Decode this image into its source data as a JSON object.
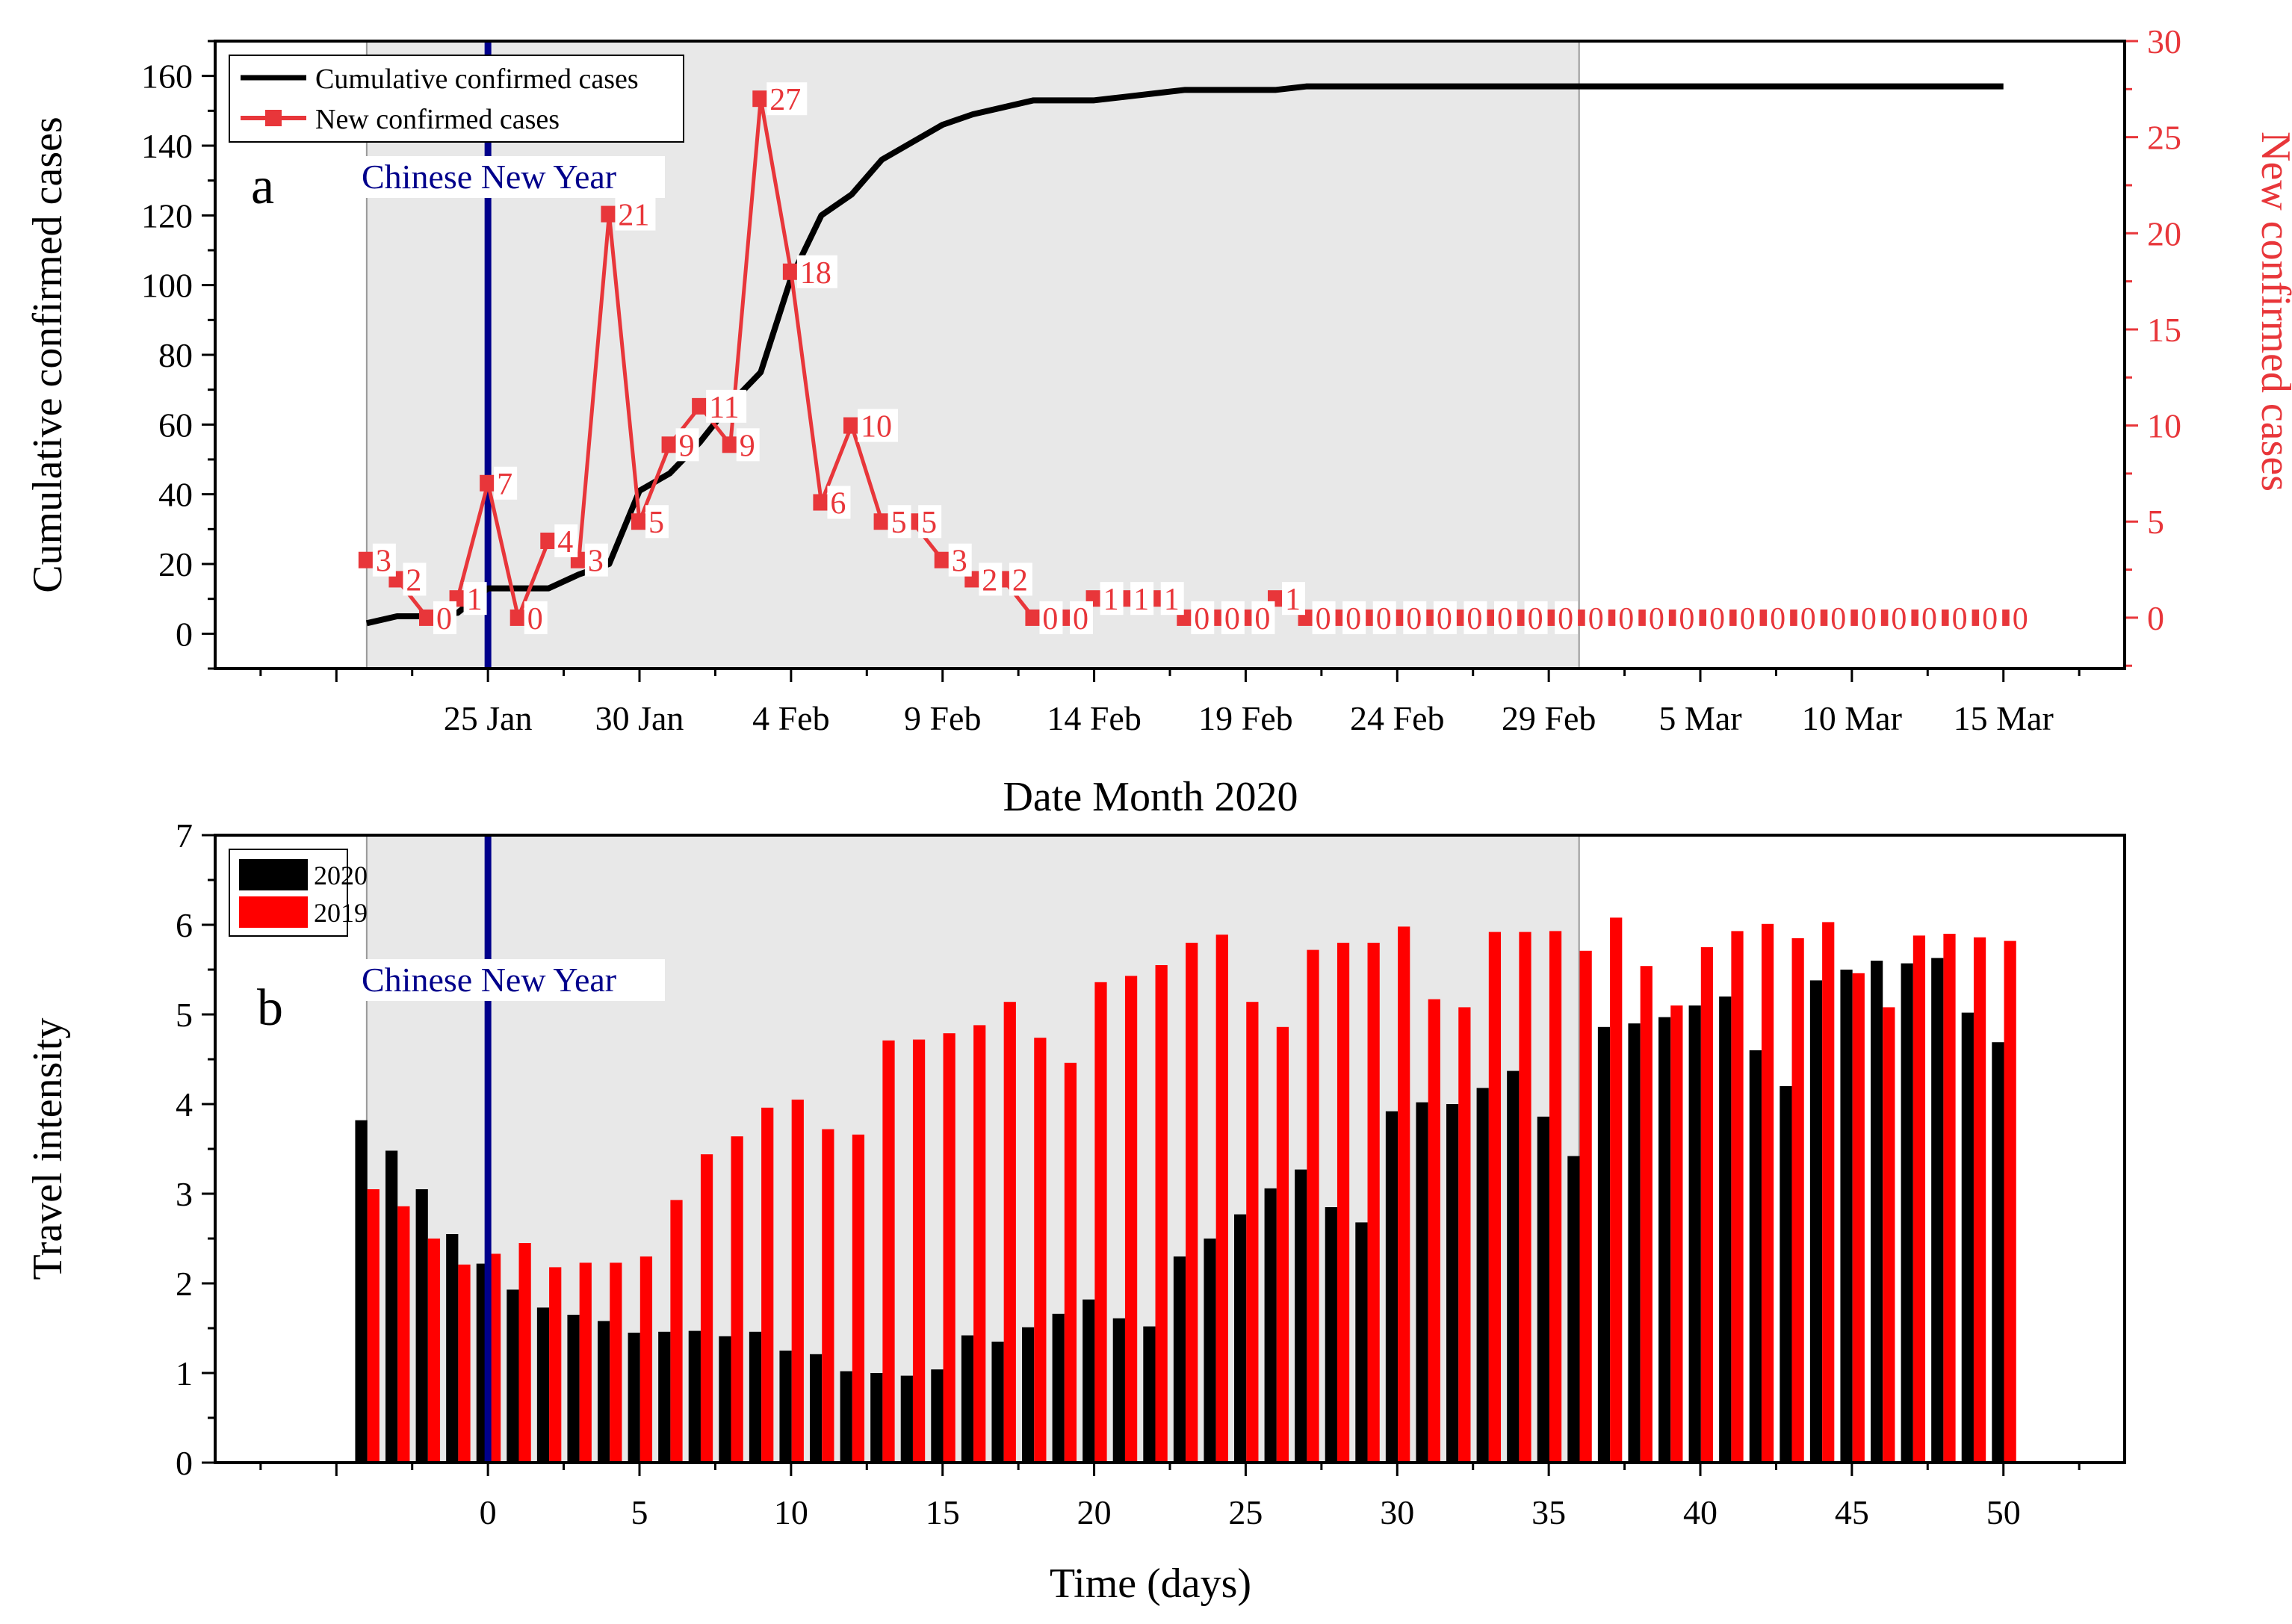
{
  "colors": {
    "cumulative": "#000000",
    "new_cases": "#e8363a",
    "bar_2019": "#ff0000",
    "bar_2020": "#000000",
    "cny_line": "#00008b",
    "shade": "#e8e8e8",
    "right_axis": "#e8363a"
  },
  "chart_data": [
    {
      "panel": "a",
      "type": "line",
      "panel_label": "a",
      "xlabel": "Date Month 2020",
      "ylabel": "Cumulative confirmed cases",
      "y2label": "New confirmed cases",
      "x_tick_labels": [
        "25 Jan",
        "30 Jan",
        "4 Feb",
        "9 Feb",
        "14 Feb",
        "19 Feb",
        "24 Feb",
        "29 Feb",
        "5 Mar",
        "10 Mar",
        "15 Mar"
      ],
      "x_tick_days": [
        0,
        5,
        10,
        15,
        20,
        25,
        30,
        35,
        40,
        45,
        50
      ],
      "xlim": [
        -9,
        54
      ],
      "ylim": [
        -10,
        170
      ],
      "y_ticks": [
        0,
        20,
        40,
        60,
        80,
        100,
        120,
        140,
        160
      ],
      "y2lim": [
        -2.647,
        30
      ],
      "y2_ticks": [
        0,
        5,
        10,
        15,
        20,
        25,
        30
      ],
      "shaded_day_range": [
        -4,
        36
      ],
      "annotation": "Chinese New Year",
      "annotation_day": 0,
      "legend": [
        "Cumulative confirmed cases",
        "New confirmed cases"
      ],
      "legend_position": "top-left",
      "series": [
        {
          "name": "Cumulative confirmed cases",
          "axis": "left",
          "days": [
            -4,
            -3,
            -2,
            -1,
            0,
            1,
            2,
            3,
            4,
            5,
            6,
            7,
            8,
            9,
            10,
            11,
            12,
            13,
            14,
            15,
            16,
            17,
            18,
            19,
            20,
            21,
            22,
            23,
            24,
            25,
            26,
            27,
            28,
            29,
            30,
            31,
            32,
            33,
            34,
            35,
            36,
            37,
            38,
            39,
            40,
            41,
            42,
            43,
            44,
            45,
            46,
            47,
            48,
            49,
            50
          ],
          "values": [
            3,
            5,
            5,
            6,
            13,
            13,
            13,
            17,
            20,
            41,
            46,
            55,
            66,
            75,
            102,
            120,
            126,
            136,
            141,
            146,
            149,
            151,
            153,
            153,
            153,
            154,
            155,
            156,
            156,
            156,
            156,
            157,
            157,
            157,
            157,
            157,
            157,
            157,
            157,
            157,
            157,
            157,
            157,
            157,
            157,
            157,
            157,
            157,
            157,
            157,
            157,
            157,
            157,
            157,
            157
          ]
        },
        {
          "name": "New confirmed cases",
          "axis": "right",
          "days": [
            -4,
            -3,
            -2,
            -1,
            0,
            1,
            2,
            3,
            4,
            5,
            6,
            7,
            8,
            9,
            10,
            11,
            12,
            13,
            14,
            15,
            16,
            17,
            18,
            19,
            20,
            21,
            22,
            23,
            24,
            25,
            26,
            27,
            28,
            29,
            30,
            31,
            32,
            33,
            34,
            35,
            36,
            37,
            38,
            39,
            40,
            41,
            42,
            43,
            44,
            45,
            46,
            47,
            48,
            49,
            50
          ],
          "values": [
            3,
            2,
            0,
            1,
            7,
            0,
            4,
            3,
            21,
            5,
            9,
            11,
            9,
            27,
            18,
            6,
            10,
            5,
            5,
            3,
            2,
            2,
            0,
            0,
            1,
            1,
            1,
            0,
            0,
            0,
            1,
            0,
            0,
            0,
            0,
            0,
            0,
            0,
            0,
            0,
            0,
            0,
            0,
            0,
            0,
            0,
            0,
            0,
            0,
            0,
            0,
            0,
            0,
            0,
            0
          ],
          "labels": [
            "3",
            "2",
            "0",
            "1",
            "7",
            "0",
            "4",
            "3",
            "21",
            "5",
            "9",
            "11",
            "9",
            "27",
            "18",
            "6",
            "10",
            "5",
            "5",
            "3",
            "2",
            "2",
            "0",
            "0",
            "1",
            "1",
            "1",
            "0",
            "0",
            "0",
            "1",
            "0",
            "0",
            "0",
            "0",
            "0",
            "0",
            "0",
            "0",
            "0",
            "0",
            "0",
            "0",
            "0",
            "0",
            "0",
            "0",
            "0",
            "0",
            "0",
            "0",
            "0",
            "0",
            "0",
            "0"
          ]
        }
      ]
    },
    {
      "panel": "b",
      "type": "bar",
      "panel_label": "b",
      "xlabel": "Time (days)",
      "ylabel": "Travel intensity",
      "x_tick_labels": [
        "0",
        "5",
        "10",
        "15",
        "20",
        "25",
        "30",
        "35",
        "40",
        "45",
        "50"
      ],
      "x_tick_days": [
        0,
        5,
        10,
        15,
        20,
        25,
        30,
        35,
        40,
        45,
        50
      ],
      "xlim": [
        -9,
        54
      ],
      "ylim": [
        0,
        7
      ],
      "y_ticks": [
        0,
        1,
        2,
        3,
        4,
        5,
        6,
        7
      ],
      "shaded_day_range": [
        -4,
        36
      ],
      "annotation": "Chinese New Year",
      "annotation_day": 0,
      "legend_position": "top-left",
      "days": [
        -4,
        -3,
        -2,
        -1,
        0,
        1,
        2,
        3,
        4,
        5,
        6,
        7,
        8,
        9,
        10,
        11,
        12,
        13,
        14,
        15,
        16,
        17,
        18,
        19,
        20,
        21,
        22,
        23,
        24,
        25,
        26,
        27,
        28,
        29,
        30,
        31,
        32,
        33,
        34,
        35,
        36,
        37,
        38,
        39,
        40,
        41,
        42,
        43,
        44,
        45,
        46,
        47,
        48,
        49,
        50
      ],
      "series": [
        {
          "name": "2020",
          "values": [
            3.82,
            3.48,
            3.05,
            2.55,
            2.22,
            1.93,
            1.73,
            1.65,
            1.58,
            1.45,
            1.46,
            1.47,
            1.41,
            1.46,
            1.25,
            1.21,
            1.02,
            1.0,
            0.97,
            1.04,
            1.42,
            1.35,
            1.51,
            1.66,
            1.82,
            1.61,
            1.52,
            2.3,
            2.5,
            2.77,
            3.06,
            3.27,
            2.85,
            2.68,
            3.92,
            4.02,
            4.0,
            4.18,
            4.37,
            3.86,
            3.42,
            4.86,
            4.9,
            4.97,
            5.1,
            5.2,
            4.6,
            4.2,
            5.38,
            5.5,
            5.6,
            5.57,
            5.63,
            5.02,
            4.69
          ]
        },
        {
          "name": "2019",
          "values": [
            3.05,
            2.86,
            2.5,
            2.21,
            2.33,
            2.45,
            2.18,
            2.23,
            2.23,
            2.3,
            2.93,
            3.44,
            3.64,
            3.96,
            4.05,
            3.72,
            3.66,
            4.71,
            4.72,
            4.79,
            4.88,
            5.14,
            4.74,
            4.46,
            5.36,
            5.43,
            5.55,
            5.8,
            5.89,
            5.14,
            4.86,
            5.72,
            5.8,
            5.8,
            5.98,
            5.17,
            5.08,
            5.92,
            5.92,
            5.93,
            5.71,
            6.08,
            5.54,
            5.1,
            5.75,
            5.93,
            6.01,
            5.85,
            6.03,
            5.46,
            5.08,
            5.88,
            5.9,
            5.86,
            5.82
          ]
        }
      ]
    }
  ]
}
